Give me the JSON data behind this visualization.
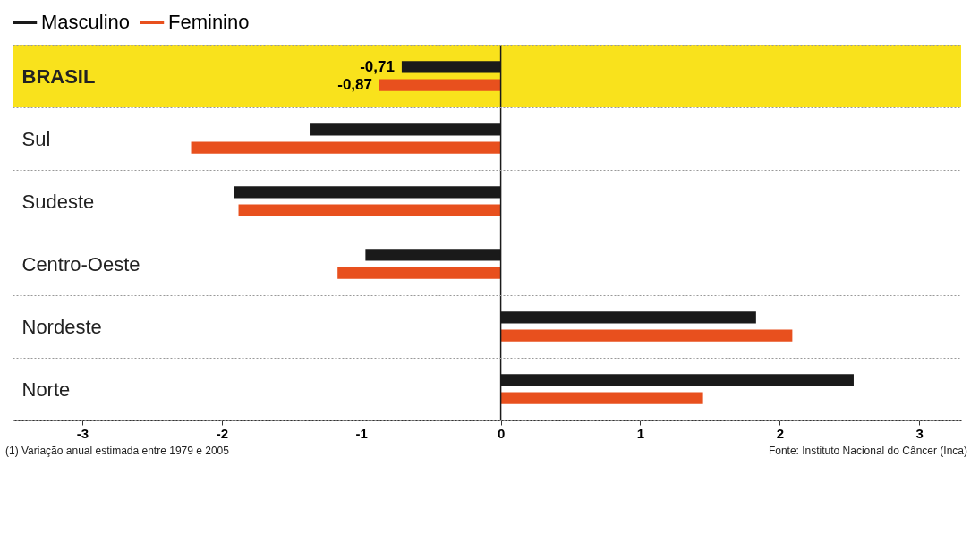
{
  "chart_data": {
    "type": "bar",
    "orientation": "horizontal",
    "categories": [
      "BRASIL",
      "Sul",
      "Sudeste",
      "Centro-Oeste",
      "Nordeste",
      "Norte"
    ],
    "series": [
      {
        "name": "Masculino",
        "color": "#1a1a1a",
        "values": [
          -0.71,
          -1.37,
          -1.91,
          -0.97,
          1.83,
          2.53
        ],
        "value_labels": [
          "-0,71",
          null,
          null,
          null,
          null,
          null
        ]
      },
      {
        "name": "Feminino",
        "color": "#e8501e",
        "values": [
          -0.87,
          -2.22,
          -1.88,
          -1.17,
          2.09,
          1.45
        ],
        "value_labels": [
          "-0,87",
          null,
          null,
          null,
          null,
          null
        ]
      }
    ],
    "xlim": [
      -3.5,
      3.3
    ],
    "xticks": [
      -3,
      -2,
      -1,
      0,
      1,
      2,
      3
    ],
    "grid": "y",
    "legend": "top left",
    "ref_lines": [
      {
        "axis": "x",
        "value": 0,
        "color": "#1a1a1a"
      }
    ],
    "bands": [
      {
        "axis": "y",
        "from": "BRASIL",
        "to": "BRASIL",
        "color": "#f9e21c"
      }
    ],
    "annotations": [
      "(1) Variação anual estimada entre 1979 e 2005",
      "Fonte: Instituto Nacional do Câncer (Inca)"
    ]
  }
}
